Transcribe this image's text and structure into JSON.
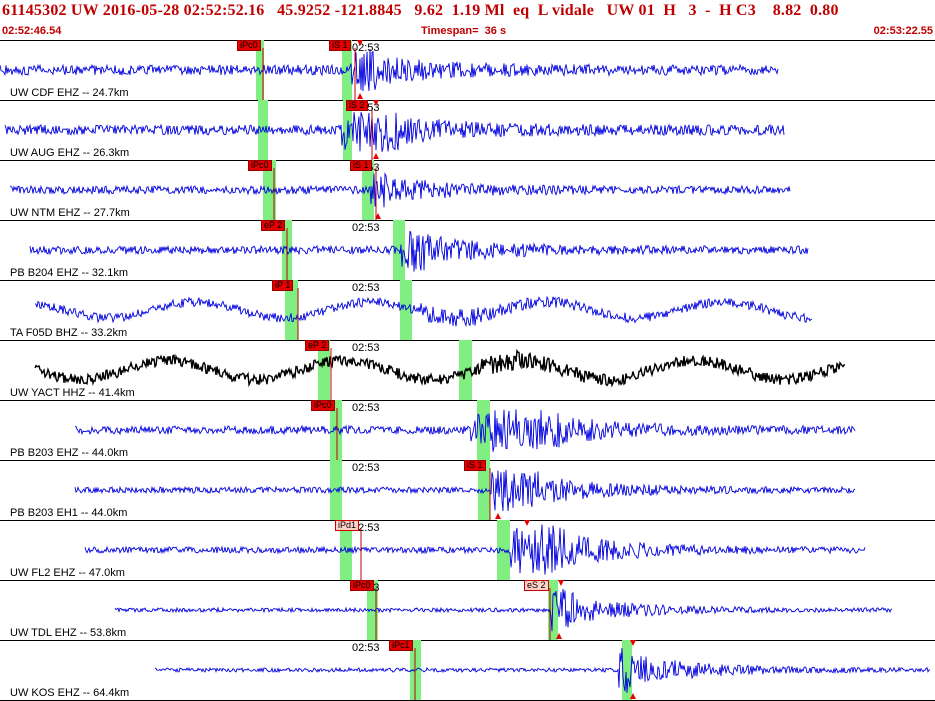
{
  "header": {
    "title": "61145302 UW 2016-05-28 02:52:52.16   45.9252 -121.8845   9.62  1.19 Ml  eq  L vidale   UW 01  H   3  -  H C3    8.82  0.80",
    "start_time": "02:52:46.54",
    "timespan": "Timespan=  36 s",
    "end_time": "02:53:22.55"
  },
  "minute_marker": "02:53",
  "colors": {
    "blue": "#0000e0",
    "black": "#000000",
    "pick_red": "#e40000",
    "pick_green": "#80ee80"
  },
  "traces": [
    {
      "label": "UW CDF EHZ -- 24.7km",
      "color": "blue",
      "picks": [
        {
          "text": "iPc0",
          "style": "red"
        },
        {
          "text": "iS 1",
          "style": "red"
        }
      ]
    },
    {
      "label": "UW AUG EHZ -- 26.3km",
      "color": "blue",
      "picks": [
        {
          "text": "iS 2",
          "style": "red"
        }
      ]
    },
    {
      "label": "UW NTM EHZ -- 27.7km",
      "color": "blue",
      "picks": [
        {
          "text": "iPc0",
          "style": "red"
        },
        {
          "text": "iS 1",
          "style": "red"
        }
      ]
    },
    {
      "label": "PB B204 EHZ -- 32.1km",
      "color": "blue",
      "picks": [
        {
          "text": "eP 2",
          "style": "red"
        }
      ]
    },
    {
      "label": "TA F05D BHZ -- 33.2km",
      "color": "blue",
      "picks": [
        {
          "text": "iP 1",
          "style": "red"
        }
      ]
    },
    {
      "label": "UW YACT HHZ -- 41.4km",
      "color": "black",
      "picks": [
        {
          "text": "eP 2",
          "style": "red"
        }
      ]
    },
    {
      "label": "PB B203 EHZ -- 44.0km",
      "color": "blue",
      "picks": [
        {
          "text": "iPc0",
          "style": "red"
        }
      ]
    },
    {
      "label": "PB B203 EH1 -- 44.0km",
      "color": "blue",
      "picks": [
        {
          "text": "iS 1",
          "style": "red"
        }
      ]
    },
    {
      "label": "UW FL2 EHZ -- 47.0km",
      "color": "blue",
      "picks": [
        {
          "text": "iPd1",
          "style": "light"
        }
      ]
    },
    {
      "label": "UW TDL EHZ -- 53.8km",
      "color": "blue",
      "picks": [
        {
          "text": "iPc0",
          "style": "red"
        },
        {
          "text": "eS 2",
          "style": "light"
        }
      ]
    },
    {
      "label": "UW KOS EHZ -- 64.4km",
      "color": "blue",
      "picks": [
        {
          "text": "iPc1",
          "style": "red"
        }
      ]
    }
  ]
}
